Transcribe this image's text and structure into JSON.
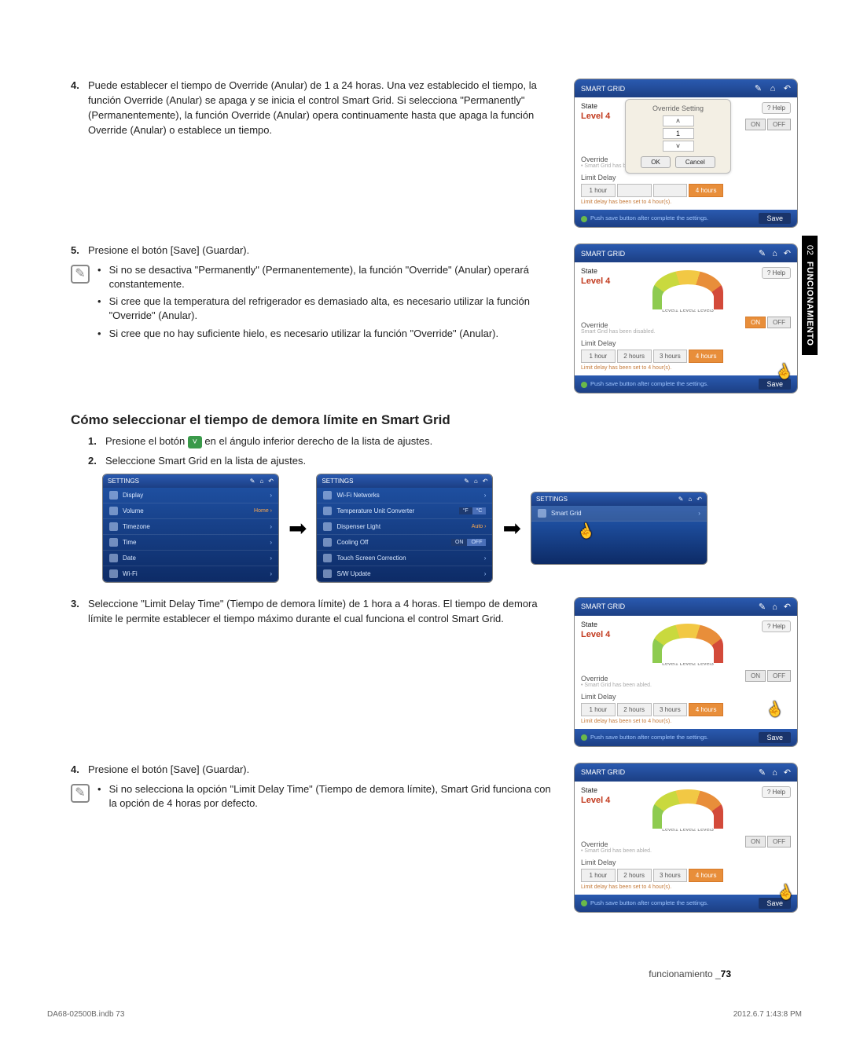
{
  "sideTab": {
    "num": "02",
    "label": "FUNCIONAMIENTO"
  },
  "step4": {
    "num": "4.",
    "text": "Puede establecer el tiempo de Override (Anular) de 1 a 24 horas. Una vez establecido el tiempo, la función Override (Anular) se apaga y se inicia el control  Smart Grid. Si selecciona \"Permanently\" (Permanentemente), la función Override (Anular) opera continuamente hasta que apaga la función Override (Anular) o establece un tiempo."
  },
  "step5": {
    "num": "5.",
    "text": "Presione el botón [Save] (Guardar)."
  },
  "note5": {
    "b1": "Si no se desactiva \"Permanently\" (Permanentemente), la función \"Override\" (Anular) operará constantemente.",
    "b2": "Si cree que la temperatura del refrigerador es demasiado alta, es necesario utilizar la función \"Override\" (Anular).",
    "b3": "Si cree que no hay suficiente hielo, es necesario utilizar la función \"Override\" (Anular)."
  },
  "h2": "Cómo seleccionar el tiempo de demora límite en Smart Grid",
  "g1": {
    "num": "1.",
    "pre": "Presione el botón ",
    "post": " en el ángulo inferior derecho de la lista de ajustes."
  },
  "g2": {
    "num": "2.",
    "text": "Seleccione Smart Grid en la lista de ajustes."
  },
  "g3": {
    "num": "3.",
    "text": "Seleccione \"Limit Delay Time\" (Tiempo de demora límite) de 1 hora a 4 horas. El tiempo de demora límite le permite establecer el tiempo máximo durante el cual funciona el control Smart Grid."
  },
  "g4": {
    "num": "4.",
    "text": "Presione el botón [Save] (Guardar)."
  },
  "note4": {
    "b1": "Si no selecciona la opción \"Limit Delay Time\" (Tiempo de demora límite), Smart Grid funciona con la opción de 4 horas por defecto."
  },
  "panel": {
    "title": "SMART GRID",
    "state": "State",
    "level": "Level 4",
    "help": "?  Help",
    "on": "ON",
    "off": "OFF",
    "override": "Override",
    "override_sub_abled": "• Smart Grid has been abled.",
    "override_sub_disabled": "Smart Grid has been disabled.",
    "limit_delay": "Limit Delay",
    "hours": [
      "1 hour",
      "2 hours",
      "3 hours",
      "4 hours"
    ],
    "hint": "Limit delay has been set to 4 hour(s).",
    "foot_text": "Push save button after complete the settings.",
    "save": "Save",
    "gauge_labels": "Level1    Level2   Level3",
    "popup": {
      "title": "Override Setting",
      "value": "1",
      "ok": "OK",
      "cancel": "Cancel"
    }
  },
  "settings1": {
    "title": "SETTINGS",
    "items": [
      {
        "label": "Display",
        "right": ""
      },
      {
        "label": "Volume",
        "right": "Home"
      },
      {
        "label": "Timezone",
        "right": ""
      },
      {
        "label": "Time",
        "right": ""
      },
      {
        "label": "Date",
        "right": ""
      },
      {
        "label": "Wi-Fi",
        "right": ""
      }
    ]
  },
  "settings2": {
    "title": "SETTINGS",
    "items": [
      {
        "label": "Wi-Fi Networks",
        "right": ""
      },
      {
        "label": "Temperature Unit Converter",
        "rightToggle": [
          "°F",
          "°C"
        ]
      },
      {
        "label": "Dispenser Light",
        "right": "Auto"
      },
      {
        "label": "Cooling Off",
        "rightToggle": [
          "ON",
          "OFF"
        ]
      },
      {
        "label": "Touch Screen Correction",
        "right": ""
      },
      {
        "label": "S/W Update",
        "right": ""
      }
    ]
  },
  "settings3": {
    "title": "SETTINGS",
    "items": [
      {
        "label": "Smart Grid",
        "right": ""
      }
    ]
  },
  "pagefoot": {
    "word": "funcionamiento _",
    "num": "73"
  },
  "footer": {
    "left": "DA68-02500B.indb   73",
    "right": "2012.6.7   1:43:8 PM"
  }
}
